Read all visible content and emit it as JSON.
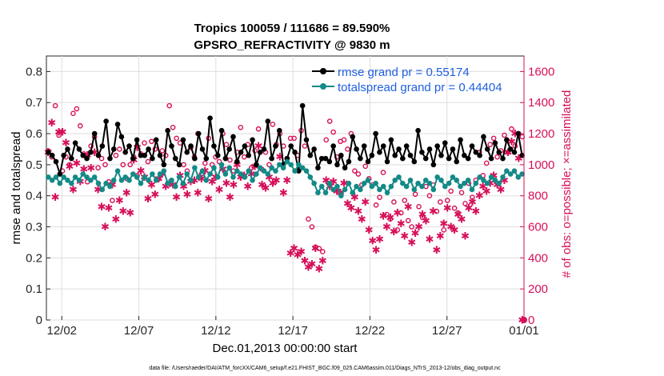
{
  "chart_data": {
    "type": "line",
    "title": "Tropics 100059 / 111686 = 89.590%",
    "subtitle": "GPSRO_REFRACTIVITY @ 9830 m",
    "xlabel": "Dec.01,2013 00:00:00 start",
    "ylabel_left": "rmse and totalspread",
    "ylabel_right": "# of obs: o=possible; ×=assimilated",
    "x_range_days": [
      0,
      31
    ],
    "ylim_left": [
      0,
      0.85
    ],
    "ylim_right": [
      0,
      1700
    ],
    "x_ticks": [
      {
        "day": 1,
        "label": "12/02"
      },
      {
        "day": 6,
        "label": "12/07"
      },
      {
        "day": 11,
        "label": "12/12"
      },
      {
        "day": 16,
        "label": "12/17"
      },
      {
        "day": 21,
        "label": "12/22"
      },
      {
        "day": 26,
        "label": "12/27"
      },
      {
        "day": 31,
        "label": "01/01"
      }
    ],
    "y_ticks_left": [
      "0",
      "0.1",
      "0.2",
      "0.3",
      "0.4",
      "0.5",
      "0.6",
      "0.7",
      "0.8"
    ],
    "y_tick_values_left": [
      0,
      0.1,
      0.2,
      0.3,
      0.4,
      0.5,
      0.6,
      0.7,
      0.8
    ],
    "y_ticks_right": [
      "0",
      "200",
      "400",
      "600",
      "800",
      "1000",
      "1200",
      "1400",
      "1600"
    ],
    "y_tick_values_right": [
      0,
      200,
      400,
      600,
      800,
      1000,
      1200,
      1400,
      1600
    ],
    "series": [
      {
        "name": "rmse",
        "legend": "rmse grand pr = 0.55174",
        "color": "#000000",
        "values": [
          0.54,
          0.53,
          0.51,
          0.47,
          0.53,
          0.55,
          0.52,
          0.57,
          0.55,
          0.53,
          0.52,
          0.54,
          0.6,
          0.53,
          0.56,
          0.64,
          0.52,
          0.55,
          0.63,
          0.59,
          0.54,
          0.56,
          0.52,
          0.58,
          0.53,
          0.53,
          0.55,
          0.52,
          0.58,
          0.53,
          0.5,
          0.61,
          0.56,
          0.52,
          0.5,
          0.58,
          0.54,
          0.56,
          0.52,
          0.6,
          0.55,
          0.52,
          0.65,
          0.56,
          0.53,
          0.61,
          0.52,
          0.55,
          0.59,
          0.51,
          0.54,
          0.56,
          0.53,
          0.58,
          0.5,
          0.54,
          0.55,
          0.64,
          0.52,
          0.56,
          0.61,
          0.5,
          0.52,
          0.56,
          0.54,
          0.48,
          0.69,
          0.58,
          0.53,
          0.55,
          0.49,
          0.52,
          0.52,
          0.51,
          0.56,
          0.5,
          0.53,
          0.49,
          0.51,
          0.59,
          0.55,
          0.52,
          0.56,
          0.51,
          0.53,
          0.6,
          0.54,
          0.56,
          0.51,
          0.58,
          0.53,
          0.55,
          0.52,
          0.56,
          0.53,
          0.51,
          0.61,
          0.54,
          0.52,
          0.55,
          0.5,
          0.56,
          0.53,
          0.57,
          0.52,
          0.55,
          0.51,
          0.58,
          0.53,
          0.52,
          0.56,
          0.54,
          0.53,
          0.59,
          0.55,
          0.52,
          0.57,
          0.54,
          0.52,
          0.58,
          0.55,
          0.54,
          0.6,
          0.53
        ]
      },
      {
        "name": "totalspread",
        "legend": "totalspread grand pr = 0.44404",
        "color": "#138a87",
        "values": [
          0.46,
          0.45,
          0.46,
          0.44,
          0.46,
          0.45,
          0.44,
          0.46,
          0.45,
          0.47,
          0.46,
          0.45,
          0.46,
          0.44,
          0.42,
          0.44,
          0.43,
          0.45,
          0.48,
          0.45,
          0.46,
          0.45,
          0.47,
          0.46,
          0.44,
          0.46,
          0.45,
          0.47,
          0.45,
          0.47,
          0.48,
          0.44,
          0.45,
          0.43,
          0.46,
          0.44,
          0.47,
          0.45,
          0.49,
          0.46,
          0.48,
          0.45,
          0.47,
          0.49,
          0.46,
          0.5,
          0.47,
          0.49,
          0.46,
          0.48,
          0.47,
          0.46,
          0.48,
          0.45,
          0.47,
          0.49,
          0.48,
          0.47,
          0.49,
          0.48,
          0.5,
          0.49,
          0.51,
          0.5,
          0.48,
          0.5,
          0.49,
          0.48,
          0.46,
          0.44,
          0.41,
          0.43,
          0.41,
          0.44,
          0.42,
          0.43,
          0.4,
          0.42,
          0.44,
          0.41,
          0.43,
          0.42,
          0.44,
          0.45,
          0.43,
          0.44,
          0.42,
          0.43,
          0.41,
          0.43,
          0.45,
          0.46,
          0.44,
          0.43,
          0.45,
          0.42,
          0.44,
          0.43,
          0.45,
          0.44,
          0.42,
          0.46,
          0.45,
          0.43,
          0.44,
          0.46,
          0.45,
          0.43,
          0.44,
          0.45,
          0.42,
          0.44,
          0.46,
          0.45,
          0.44,
          0.46,
          0.45,
          0.44,
          0.46,
          0.48,
          0.47,
          0.48,
          0.46,
          0.47
        ]
      }
    ],
    "obs_possible": [
      1090,
      1050,
      1380,
      1190,
      960,
      1050,
      1000,
      1330,
      1360,
      1250,
      1070,
      890,
      1120,
      1180,
      980,
      1040,
      1000,
      890,
      770,
      1060,
      1100,
      1000,
      910,
      1000,
      1050,
      930,
      1070,
      1140,
      1020,
      1150,
      1100,
      910,
      1090,
      1060,
      1380,
      1240,
      1170,
      1140,
      1000,
      960,
      1110,
      1050,
      1200,
      940,
      1010,
      1170,
      1000,
      1050,
      1020,
      1200,
      1130,
      1030,
      960,
      1080,
      1240,
      1050,
      1130,
      980,
      1090,
      1230,
      970,
      1080,
      1000,
      1260,
      1130,
      1200,
      1120,
      1040,
      1170,
      1170,
      1060,
      1220,
      1120,
      650,
      600,
      470,
      460,
      440,
      1160,
      1280,
      1210,
      1050,
      1150,
      1160,
      1100,
      1200,
      960,
      940,
      870,
      990,
      910,
      870,
      740,
      790,
      950,
      680,
      650,
      760,
      580,
      690,
      770,
      640,
      600,
      810,
      730,
      660,
      860,
      800,
      870,
      700,
      760,
      580,
      770,
      830,
      720,
      690,
      820,
      750,
      880,
      790,
      900,
      1080,
      930,
      1010,
      1130,
      1170,
      1050,
      1090,
      1190,
      1080,
      1230,
      1120,
      1200,
      1180
    ],
    "obs_assimilated": [
      1080,
      1270,
      790,
      1210,
      1210,
      1140,
      990,
      840,
      1010,
      890,
      970,
      1060,
      980,
      1080,
      840,
      730,
      600,
      720,
      870,
      650,
      770,
      700,
      820,
      690,
      1030,
      1110,
      960,
      920,
      780,
      870,
      810,
      910,
      940,
      860,
      880,
      870,
      790,
      930,
      860,
      810,
      890,
      900,
      820,
      910,
      960,
      780,
      890,
      920,
      840,
      970,
      880,
      790,
      870,
      1000,
      920,
      930,
      860,
      940,
      990,
      1120,
      870,
      850,
      920,
      880,
      900,
      1050,
      820,
      900,
      430,
      460,
      420,
      440,
      380,
      340,
      360,
      460,
      330,
      380,
      900,
      860,
      890,
      830,
      820,
      880,
      750,
      720,
      790,
      700,
      650,
      760,
      580,
      510,
      450,
      520,
      670,
      600,
      660,
      570,
      690,
      620,
      540,
      730,
      500,
      560,
      600,
      680,
      640,
      520,
      700,
      450,
      540,
      620,
      720,
      600,
      580,
      680,
      650,
      540,
      720,
      760,
      700,
      800,
      860,
      830,
      880,
      930,
      870,
      840,
      900,
      1080,
      1150,
      1200,
      1040,
      0
    ]
  },
  "footnote": "data file: /Users/raeder/DAI/ATM_forcXX/CAM6_setup/f.e21.FHIST_BGC.f09_025.CAM6assim.011/Diags_NTrS_2013-12/obs_diag_output.nc"
}
